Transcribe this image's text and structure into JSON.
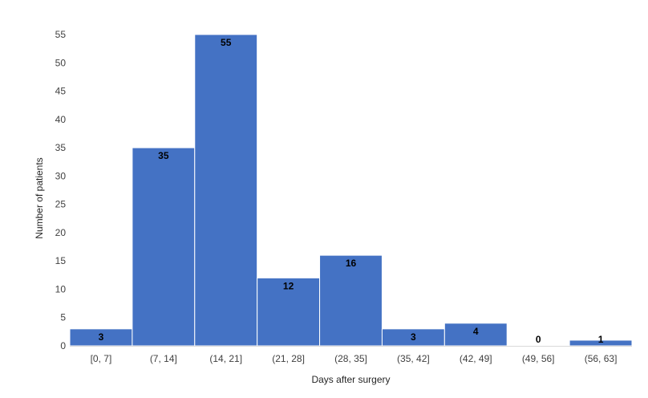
{
  "chart_data": {
    "type": "bar",
    "title": "",
    "xlabel": "Days after surgery",
    "ylabel": "Number of patients",
    "categories": [
      "[0, 7]",
      "(7, 14]",
      "(14, 21]",
      "(21, 28]",
      "(28, 35]",
      "(35, 42]",
      "(42, 49]",
      "(49, 56]",
      "(56, 63]"
    ],
    "values": [
      3,
      35,
      55,
      12,
      16,
      3,
      4,
      0,
      1
    ],
    "ylim": [
      0,
      55
    ],
    "yticks": [
      0,
      5,
      10,
      15,
      20,
      25,
      30,
      35,
      40,
      45,
      50,
      55
    ],
    "grid": false,
    "legend": "none",
    "bar_color": "#4472C4",
    "bar_edge_color": "#ffffff",
    "data_labels": true
  }
}
